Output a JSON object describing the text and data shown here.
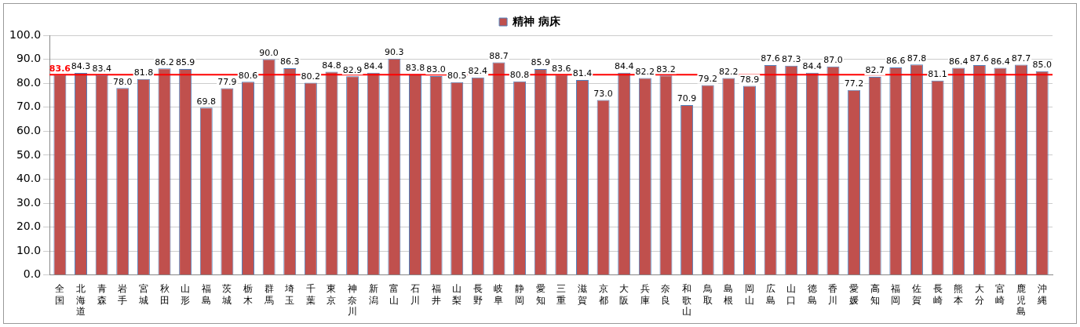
{
  "chart_data": {
    "type": "bar",
    "categories": [
      "全国",
      "北海道",
      "青森",
      "岩手",
      "宮城",
      "秋田",
      "山形",
      "福島",
      "茨城",
      "栃木",
      "群馬",
      "埼玉",
      "千葉",
      "東京",
      "神奈川",
      "新潟",
      "富山",
      "石川",
      "福井",
      "山梨",
      "長野",
      "岐阜",
      "静岡",
      "愛知",
      "三重",
      "滋賀",
      "京都",
      "大阪",
      "兵庫",
      "奈良",
      "和歌山",
      "鳥取",
      "島根",
      "岡山",
      "広島",
      "山口",
      "徳島",
      "香川",
      "愛媛",
      "高知",
      "福岡",
      "佐賀",
      "長崎",
      "熊本",
      "大分",
      "宮崎",
      "鹿児島",
      "沖縄"
    ],
    "series": [
      {
        "name": "精神 病床",
        "color": "#c0504d",
        "values": [
          83.6,
          84.3,
          83.4,
          78.0,
          81.8,
          86.2,
          85.9,
          69.8,
          77.9,
          80.6,
          90.0,
          86.3,
          80.2,
          84.8,
          82.9,
          84.4,
          90.3,
          83.8,
          83.0,
          80.5,
          82.4,
          88.7,
          80.8,
          85.9,
          83.6,
          81.4,
          73.0,
          84.4,
          82.2,
          83.2,
          70.9,
          79.2,
          82.2,
          78.9,
          87.6,
          87.3,
          84.4,
          87.0,
          77.2,
          82.7,
          86.6,
          87.8,
          81.1,
          86.4,
          87.6,
          86.4,
          87.7,
          85.0
        ],
        "value_labels": [
          null,
          "84.3",
          "83.4",
          "78.0",
          "81.8",
          "86.2",
          "85.9",
          "69.8",
          "77.9",
          "80.6",
          "90.0",
          "86.3",
          "80.2",
          "84.8",
          "82.9",
          "84.4",
          "90.3",
          "83.8",
          "83.0",
          "80.5",
          "82.4",
          "88.7",
          "80.8",
          "85.9",
          "83.6",
          "81.4",
          "73.0",
          "84.4",
          "82.2",
          "83.2",
          "70.9",
          "79.2",
          "82.2",
          "78.9",
          "87.6",
          "87.3",
          "84.4",
          "87.0",
          "77.2",
          "82.7",
          "86.6",
          "87.8",
          "81.1",
          "86.4",
          "87.6",
          "86.4",
          "87.7",
          "85.0"
        ]
      }
    ],
    "ylim": [
      0,
      100
    ],
    "yticks": [
      {
        "value": 0,
        "label": "0.0"
      },
      {
        "value": 10,
        "label": "10.0"
      },
      {
        "value": 20,
        "label": "20.0"
      },
      {
        "value": 30,
        "label": "30.0"
      },
      {
        "value": 40,
        "label": "40.0"
      },
      {
        "value": 50,
        "label": "50.0"
      },
      {
        "value": 60,
        "label": "60.0"
      },
      {
        "value": 70,
        "label": "70.0"
      },
      {
        "value": 80,
        "label": "80.0"
      },
      {
        "value": 90,
        "label": "90.0"
      },
      {
        "value": 100,
        "label": "100.0"
      }
    ],
    "ref_lines": [
      {
        "axis": "y",
        "value": 83.6,
        "label": "83.6",
        "color": "#ff0000"
      }
    ],
    "grid": "y",
    "legend": "top"
  }
}
